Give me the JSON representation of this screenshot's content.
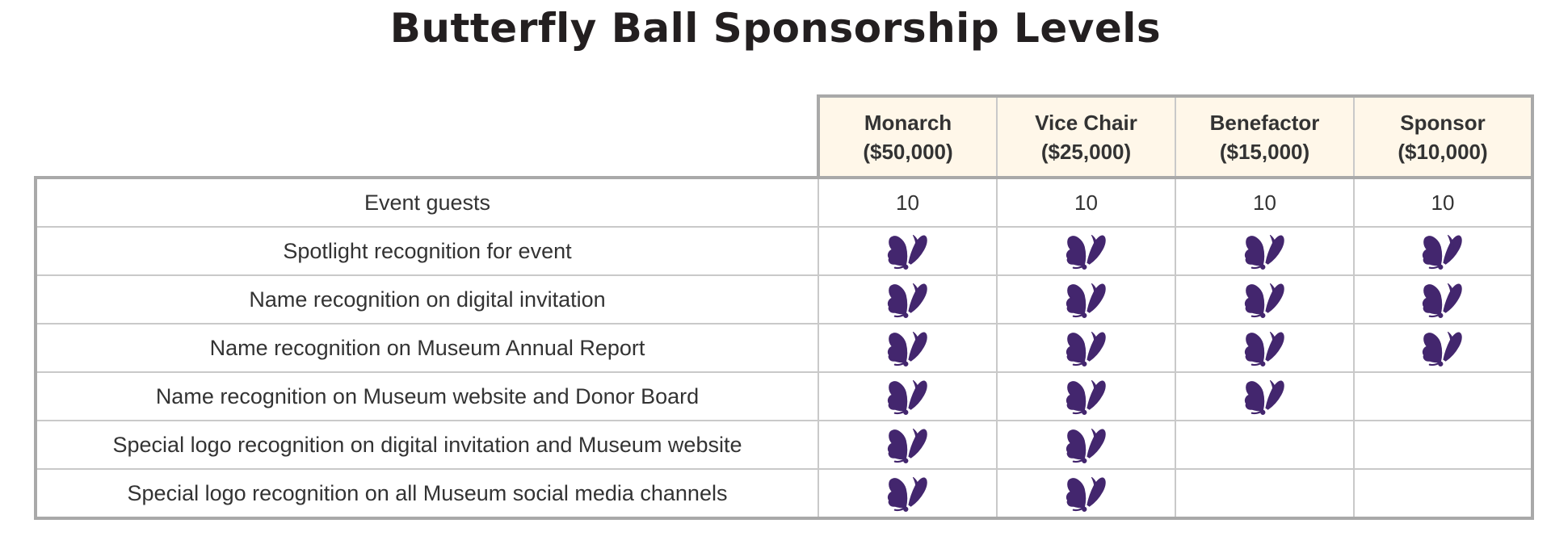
{
  "title": "Butterfly Ball Sponsorship Levels",
  "colors": {
    "butterfly": "#43266e",
    "header_bg": "#fff7e9",
    "border": "#a9a9a9"
  },
  "check_icon": "butterfly-icon",
  "levels": [
    {
      "name": "Monarch",
      "amount": "($50,000)"
    },
    {
      "name": "Vice Chair",
      "amount": "($25,000)"
    },
    {
      "name": "Benefactor",
      "amount": "($15,000)"
    },
    {
      "name": "Sponsor",
      "amount": "($10,000)"
    }
  ],
  "rows": [
    {
      "label": "Event guests",
      "values": [
        "10",
        "10",
        "10",
        "10"
      ]
    },
    {
      "label": "Spotlight recognition for event",
      "values": [
        true,
        true,
        true,
        true
      ]
    },
    {
      "label": "Name recognition on digital invitation",
      "values": [
        true,
        true,
        true,
        true
      ]
    },
    {
      "label": "Name recognition on Museum Annual Report",
      "values": [
        true,
        true,
        true,
        true
      ]
    },
    {
      "label": "Name recognition on Museum website and Donor Board",
      "values": [
        true,
        true,
        true,
        false
      ]
    },
    {
      "label": "Special logo recognition on digital invitation and Museum website",
      "values": [
        true,
        true,
        false,
        false
      ]
    },
    {
      "label": "Special logo recognition on all Museum social media channels",
      "values": [
        true,
        true,
        false,
        false
      ]
    }
  ]
}
